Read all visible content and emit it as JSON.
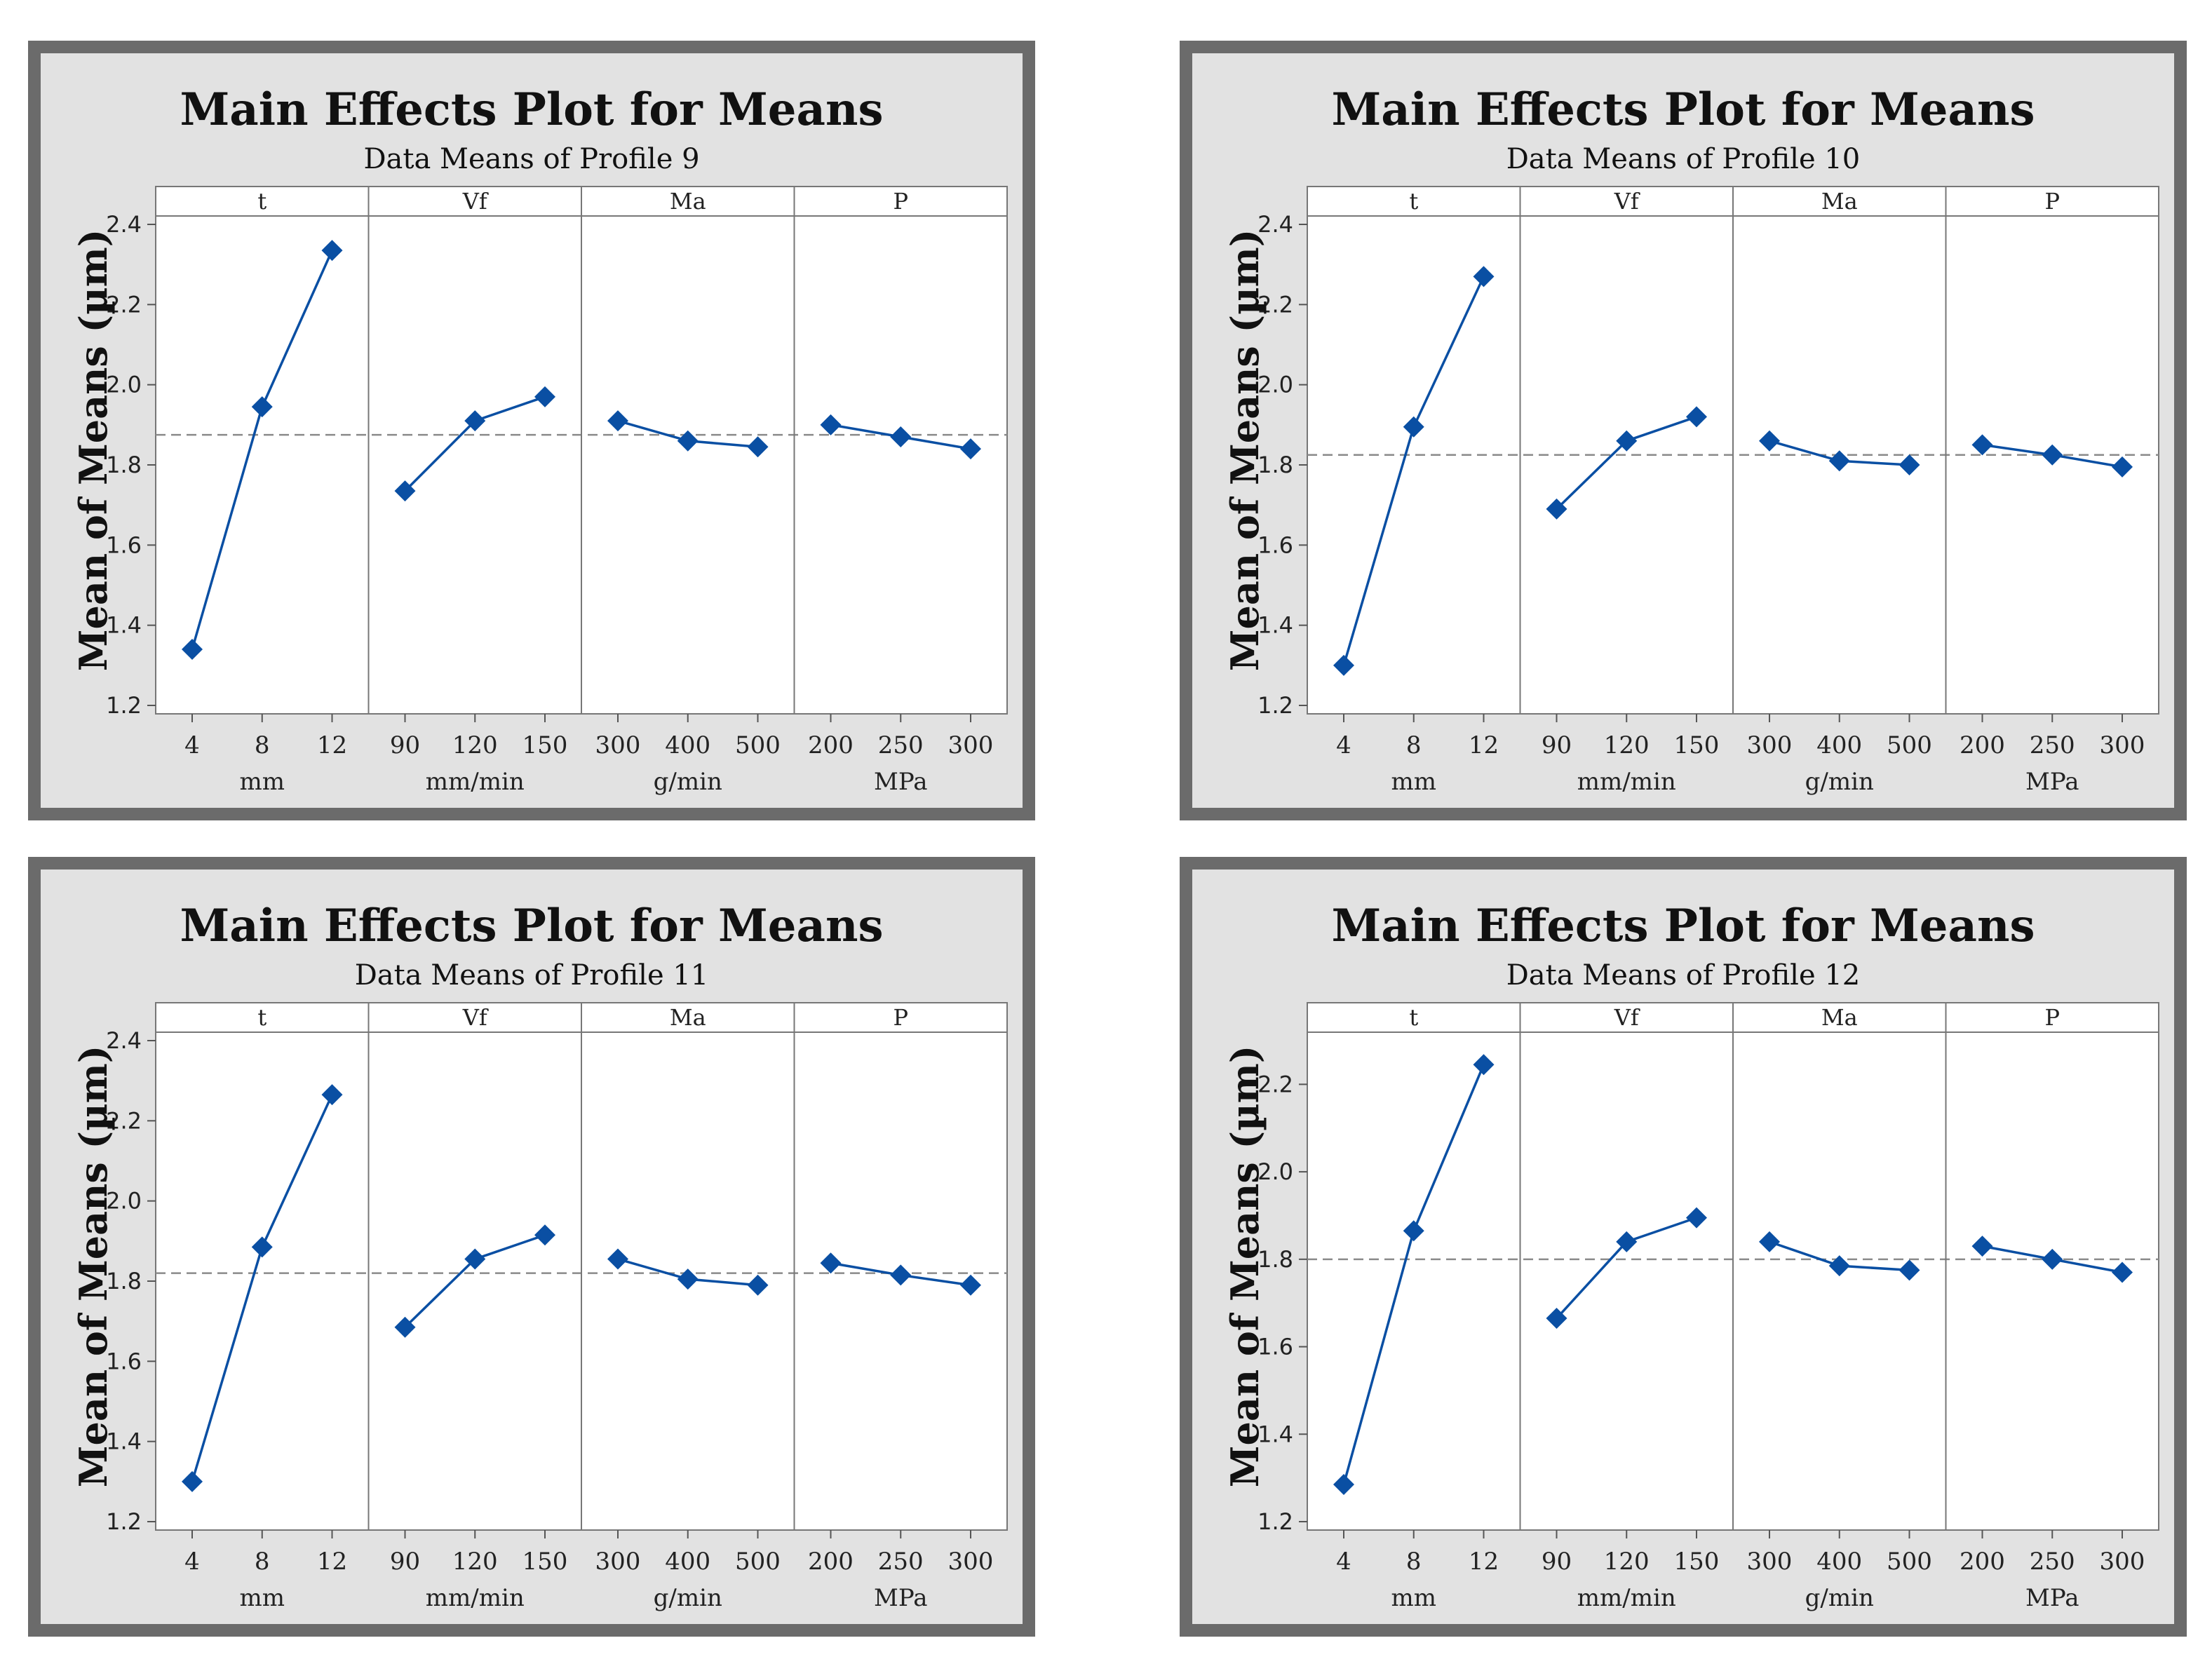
{
  "colors": {
    "frame": "#6b6b6b",
    "background": "#e2e2e2",
    "plot_bg": "#ffffff",
    "series": "#0a4fa3",
    "reference": "#8a8a8a"
  },
  "chart_data": [
    {
      "type": "line",
      "title": "Main Effects Plot for Means",
      "subtitle": "Data Means of Profile 9",
      "ylabel": "Mean of Means (µm)",
      "ylim": [
        1.2,
        2.4
      ],
      "yticks": [
        1.2,
        1.4,
        1.6,
        1.8,
        2.0,
        2.2,
        2.4
      ],
      "reference_mean": 1.875,
      "panels": [
        {
          "name": "t",
          "unit": "mm",
          "x": [
            "4",
            "8",
            "12"
          ],
          "values": [
            1.34,
            1.945,
            2.335
          ]
        },
        {
          "name": "Vf",
          "unit": "mm/min",
          "x": [
            "90",
            "120",
            "150"
          ],
          "values": [
            1.735,
            1.91,
            1.97
          ]
        },
        {
          "name": "Ma",
          "unit": "g/min",
          "x": [
            "300",
            "400",
            "500"
          ],
          "values": [
            1.91,
            1.86,
            1.845
          ]
        },
        {
          "name": "P",
          "unit": "MPa",
          "x": [
            "200",
            "250",
            "300"
          ],
          "values": [
            1.9,
            1.87,
            1.84
          ]
        }
      ]
    },
    {
      "type": "line",
      "title": "Main Effects Plot for Means",
      "subtitle": "Data Means of Profile 10",
      "ylabel": "Mean of Means (µm)",
      "ylim": [
        1.2,
        2.4
      ],
      "yticks": [
        1.2,
        1.4,
        1.6,
        1.8,
        2.0,
        2.2,
        2.4
      ],
      "reference_mean": 1.825,
      "panels": [
        {
          "name": "t",
          "unit": "mm",
          "x": [
            "4",
            "8",
            "12"
          ],
          "values": [
            1.3,
            1.895,
            2.27
          ]
        },
        {
          "name": "Vf",
          "unit": "mm/min",
          "x": [
            "90",
            "120",
            "150"
          ],
          "values": [
            1.69,
            1.86,
            1.92
          ]
        },
        {
          "name": "Ma",
          "unit": "g/min",
          "x": [
            "300",
            "400",
            "500"
          ],
          "values": [
            1.86,
            1.81,
            1.8
          ]
        },
        {
          "name": "P",
          "unit": "MPa",
          "x": [
            "200",
            "250",
            "300"
          ],
          "values": [
            1.85,
            1.825,
            1.795
          ]
        }
      ]
    },
    {
      "type": "line",
      "title": "Main Effects Plot for Means",
      "subtitle": "Data Means of Profile 11",
      "ylabel": "Mean of Means  (µm)",
      "ylim": [
        1.2,
        2.4
      ],
      "yticks": [
        1.2,
        1.4,
        1.6,
        1.8,
        2.0,
        2.2,
        2.4
      ],
      "reference_mean": 1.82,
      "panels": [
        {
          "name": "t",
          "unit": "mm",
          "x": [
            "4",
            "8",
            "12"
          ],
          "values": [
            1.3,
            1.885,
            2.265
          ]
        },
        {
          "name": "Vf",
          "unit": "mm/min",
          "x": [
            "90",
            "120",
            "150"
          ],
          "values": [
            1.685,
            1.855,
            1.915
          ]
        },
        {
          "name": "Ma",
          "unit": "g/min",
          "x": [
            "300",
            "400",
            "500"
          ],
          "values": [
            1.855,
            1.805,
            1.79
          ]
        },
        {
          "name": "P",
          "unit": "MPa",
          "x": [
            "200",
            "250",
            "300"
          ],
          "values": [
            1.845,
            1.815,
            1.79
          ]
        }
      ]
    },
    {
      "type": "line",
      "title": "Main Effects Plot for Means",
      "subtitle": "Data Means of Profile 12",
      "ylabel": "Mean of Means (µm)",
      "ylim": [
        1.2,
        2.3
      ],
      "yticks": [
        1.2,
        1.4,
        1.6,
        1.8,
        2.0,
        2.2
      ],
      "reference_mean": 1.8,
      "panels": [
        {
          "name": "t",
          "unit": "mm",
          "x": [
            "4",
            "8",
            "12"
          ],
          "values": [
            1.285,
            1.865,
            2.245
          ]
        },
        {
          "name": "Vf",
          "unit": "mm/min",
          "x": [
            "90",
            "120",
            "150"
          ],
          "values": [
            1.665,
            1.84,
            1.895
          ]
        },
        {
          "name": "Ma",
          "unit": "g/min",
          "x": [
            "300",
            "400",
            "500"
          ],
          "values": [
            1.84,
            1.785,
            1.775
          ]
        },
        {
          "name": "P",
          "unit": "MPa",
          "x": [
            "200",
            "250",
            "300"
          ],
          "values": [
            1.83,
            1.8,
            1.77
          ]
        }
      ]
    }
  ]
}
